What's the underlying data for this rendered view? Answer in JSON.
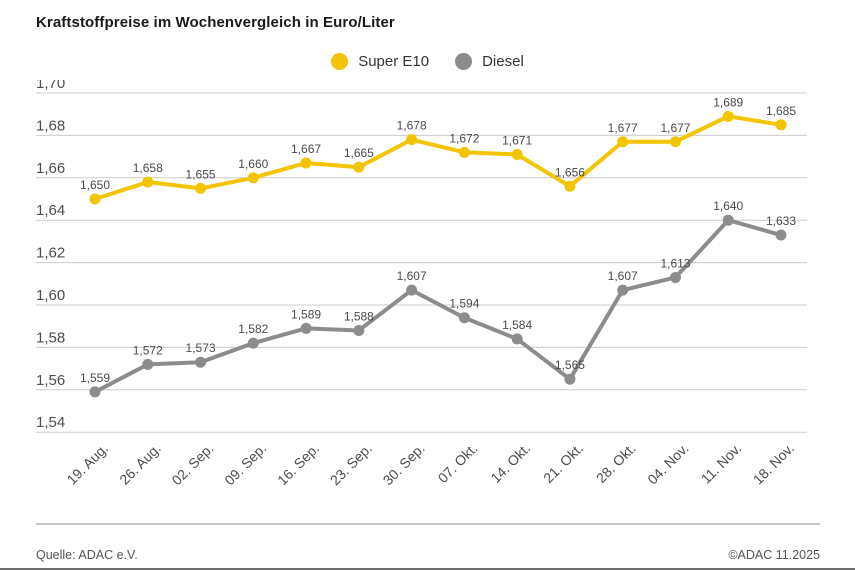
{
  "title": "Kraftstoffpreise im Wochenvergleich in Euro/Liter",
  "legend": {
    "items": [
      {
        "label": "Super E10",
        "color": "#F2C500"
      },
      {
        "label": "Diesel",
        "color": "#8C8C8C"
      }
    ]
  },
  "chart_data": {
    "type": "line",
    "title": "Kraftstoffpreise im Wochenvergleich in Euro/Liter",
    "categories": [
      "19. Aug.",
      "26. Aug.",
      "02. Sep.",
      "09. Sep.",
      "16. Sep.",
      "23. Sep.",
      "30. Sep.",
      "07. Okt.",
      "14. Okt.",
      "21. Okt.",
      "28. Okt.",
      "04. Nov.",
      "11. Nov.",
      "18. Nov."
    ],
    "series": [
      {
        "name": "Super E10",
        "color": "#F2C500",
        "values": [
          1.65,
          1.658,
          1.655,
          1.66,
          1.667,
          1.665,
          1.678,
          1.672,
          1.671,
          1.656,
          1.677,
          1.677,
          1.689,
          1.685
        ]
      },
      {
        "name": "Diesel",
        "color": "#8C8C8C",
        "values": [
          1.559,
          1.572,
          1.573,
          1.582,
          1.589,
          1.588,
          1.607,
          1.594,
          1.584,
          1.565,
          1.607,
          1.613,
          1.64,
          1.633
        ]
      }
    ],
    "xlabel": "",
    "ylabel": "Euro/Liter",
    "ylim": [
      1.54,
      1.7
    ],
    "ytick_step": 0.02,
    "grid": true,
    "legend_position": "top-center",
    "decimal_separator": ",",
    "value_decimals": 3,
    "axis_decimals": 2,
    "grid_color": "#cccccc",
    "label_color": "#4a4a4a",
    "axis_label_color": "#4d4d4d"
  },
  "footer": {
    "source": "Quelle: ADAC e.V.",
    "copyright": "©ADAC 11.2025"
  }
}
